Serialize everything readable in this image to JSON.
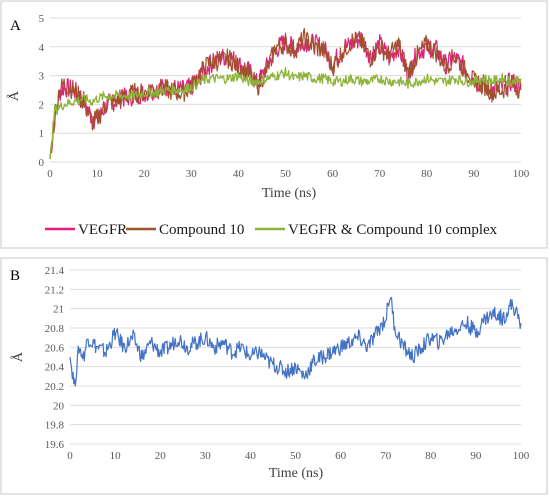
{
  "chart_data": [
    {
      "panel": "A",
      "type": "line",
      "title": "",
      "xlabel": "Time (ns)",
      "ylabel": "Å",
      "xlim": [
        0,
        100
      ],
      "ylim": [
        0,
        5
      ],
      "x_ticks": [
        "0",
        "10",
        "20",
        "30",
        "40",
        "50",
        "60",
        "70",
        "80",
        "90",
        "100"
      ],
      "y_ticks": [
        "0",
        "1",
        "2",
        "3",
        "4",
        "5"
      ],
      "grid": true,
      "legend_position": "bottom",
      "x": [
        0,
        1,
        2,
        3,
        5,
        7,
        9,
        10,
        12,
        15,
        18,
        20,
        22,
        25,
        28,
        30,
        32,
        34,
        36,
        38,
        40,
        42,
        44,
        46,
        48,
        50,
        52,
        54,
        56,
        58,
        60,
        62,
        64,
        66,
        68,
        70,
        72,
        74,
        76,
        78,
        80,
        82,
        84,
        86,
        88,
        90,
        92,
        94,
        96,
        98,
        100
      ],
      "series": [
        {
          "name": "VEGFR",
          "color": "#e0207f",
          "values": [
            0.1,
            1.6,
            2.4,
            2.6,
            2.5,
            2.2,
            1.5,
            1.4,
            2.0,
            2.2,
            2.3,
            2.4,
            2.5,
            2.6,
            2.5,
            2.6,
            3.0,
            3.4,
            3.6,
            3.7,
            3.4,
            3.2,
            2.7,
            3.3,
            3.9,
            4.2,
            3.9,
            4.2,
            4.1,
            4.0,
            3.4,
            3.9,
            4.1,
            4.3,
            3.7,
            4.1,
            3.6,
            4.0,
            3.0,
            3.8,
            4.0,
            3.9,
            3.4,
            3.6,
            3.3,
            2.9,
            2.6,
            2.5,
            2.6,
            2.8,
            2.6
          ]
        },
        {
          "name": "Compound 10",
          "color": "#a0522d",
          "values": [
            0.1,
            1.5,
            2.5,
            2.7,
            2.5,
            2.1,
            1.4,
            1.5,
            2.0,
            2.2,
            2.4,
            2.4,
            2.6,
            2.5,
            2.4,
            2.6,
            3.1,
            3.5,
            3.5,
            3.6,
            3.3,
            3.1,
            2.6,
            3.2,
            4.0,
            4.1,
            3.9,
            4.3,
            4.0,
            3.9,
            3.3,
            3.8,
            4.2,
            4.2,
            3.6,
            4.0,
            3.7,
            4.1,
            3.1,
            3.7,
            4.1,
            3.8,
            3.3,
            3.7,
            3.2,
            2.8,
            2.7,
            2.4,
            2.5,
            2.7,
            2.5
          ]
        },
        {
          "name": "VEGFR & Compound 10 complex",
          "color": "#8db33a",
          "values": [
            0.1,
            1.8,
            1.9,
            2.0,
            2.1,
            2.2,
            2.1,
            2.2,
            2.3,
            2.3,
            2.3,
            2.4,
            2.4,
            2.5,
            2.5,
            2.6,
            2.8,
            2.9,
            2.9,
            2.9,
            3.0,
            2.8,
            2.8,
            2.9,
            3.0,
            3.1,
            2.9,
            3.0,
            2.9,
            2.9,
            2.8,
            2.8,
            2.9,
            2.8,
            2.8,
            2.9,
            2.8,
            2.8,
            2.7,
            2.8,
            2.9,
            2.8,
            2.8,
            2.9,
            2.8,
            2.8,
            2.9,
            2.8,
            2.9,
            2.8,
            2.9
          ]
        }
      ]
    },
    {
      "panel": "B",
      "type": "line",
      "title": "",
      "xlabel": "Time (ns)",
      "ylabel": "Å",
      "xlim": [
        0,
        100
      ],
      "ylim": [
        19.6,
        21.4
      ],
      "x_ticks": [
        "0",
        "10",
        "20",
        "30",
        "40",
        "50",
        "60",
        "70",
        "80",
        "90",
        "100"
      ],
      "y_ticks": [
        "19.6",
        "19.8",
        "20",
        "20.2",
        "20.4",
        "20.6",
        "20.8",
        "21",
        "21.2",
        "21.4"
      ],
      "grid": true,
      "x": [
        0,
        1,
        2,
        3,
        4,
        6,
        8,
        10,
        12,
        14,
        16,
        18,
        20,
        22,
        24,
        26,
        28,
        30,
        32,
        34,
        36,
        38,
        40,
        42,
        44,
        46,
        48,
        50,
        52,
        54,
        56,
        58,
        60,
        62,
        64,
        66,
        68,
        70,
        71,
        72,
        74,
        76,
        78,
        80,
        82,
        84,
        86,
        88,
        90,
        92,
        94,
        96,
        98,
        100
      ],
      "series": [
        {
          "color": "#4472c4",
          "values": [
            20.5,
            20.2,
            20.6,
            20.5,
            20.7,
            20.6,
            20.55,
            20.75,
            20.6,
            20.7,
            20.5,
            20.65,
            20.55,
            20.6,
            20.7,
            20.6,
            20.65,
            20.7,
            20.6,
            20.65,
            20.55,
            20.6,
            20.5,
            20.55,
            20.45,
            20.4,
            20.35,
            20.4,
            20.3,
            20.45,
            20.5,
            20.55,
            20.6,
            20.65,
            20.7,
            20.6,
            20.75,
            20.9,
            21.15,
            20.8,
            20.6,
            20.5,
            20.6,
            20.7,
            20.65,
            20.75,
            20.8,
            20.85,
            20.75,
            20.9,
            20.95,
            20.9,
            21.05,
            20.85
          ]
        }
      ]
    }
  ],
  "panel_a_letter": "A",
  "panel_b_letter": "B"
}
